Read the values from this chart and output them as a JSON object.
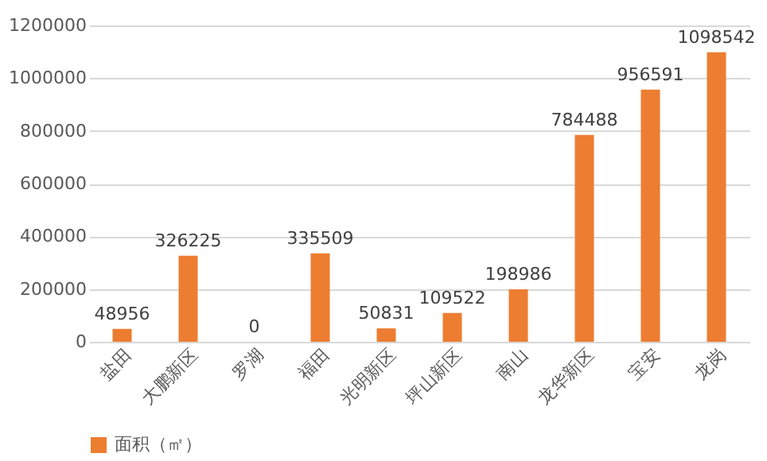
{
  "chart_data": {
    "type": "bar",
    "categories": [
      "盐田",
      "大鹏新区",
      "罗湖",
      "福田",
      "光明新区",
      "坪山新区",
      "南山",
      "龙华新区",
      "宝安",
      "龙岗"
    ],
    "series": [
      {
        "name": "面积（㎡）",
        "color": "#ed7d31",
        "values": [
          48956,
          326225,
          0,
          335509,
          50831,
          109522,
          198986,
          784488,
          956591,
          1098542
        ]
      }
    ],
    "ylim": [
      0,
      1200000
    ],
    "yticks": [
      0,
      200000,
      400000,
      600000,
      800000,
      1000000,
      1200000
    ],
    "grid": "y",
    "legend": "bottom",
    "data_labels": true
  }
}
